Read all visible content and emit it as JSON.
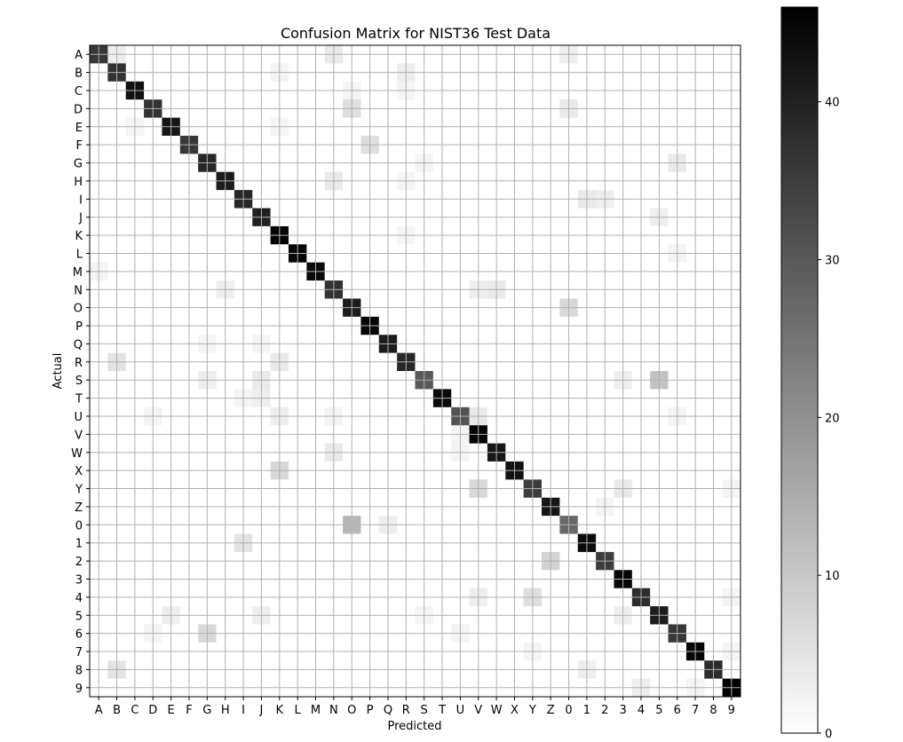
{
  "chart_data": {
    "type": "heatmap",
    "title": "Confusion Matrix for NIST36 Test Data",
    "xlabel": "Predicted",
    "ylabel": "Actual",
    "labels": [
      "A",
      "B",
      "C",
      "D",
      "E",
      "F",
      "G",
      "H",
      "I",
      "J",
      "K",
      "L",
      "M",
      "N",
      "O",
      "P",
      "Q",
      "R",
      "S",
      "T",
      "U",
      "V",
      "W",
      "X",
      "Y",
      "Z",
      "0",
      "1",
      "2",
      "3",
      "4",
      "5",
      "6",
      "7",
      "8",
      "9"
    ],
    "colormap": "gray_r",
    "vmin": 0,
    "vmax": 46,
    "colorbar_ticks": [
      0,
      10,
      20,
      30,
      40
    ],
    "grid": true,
    "diagonal": [
      36,
      37,
      43,
      37,
      42,
      36,
      39,
      41,
      39,
      40,
      45,
      45,
      44,
      37,
      41,
      45,
      41,
      39,
      30,
      44,
      31,
      45,
      42,
      43,
      35,
      42,
      27,
      44,
      35,
      45,
      38,
      41,
      36,
      45,
      38,
      46
    ],
    "off_diagonal": [
      {
        "actual": "A",
        "predicted": "B",
        "value": 3
      },
      {
        "actual": "A",
        "predicted": "N",
        "value": 4
      },
      {
        "actual": "A",
        "predicted": "0",
        "value": 3
      },
      {
        "actual": "B",
        "predicted": "K",
        "value": 2
      },
      {
        "actual": "B",
        "predicted": "R",
        "value": 3
      },
      {
        "actual": "C",
        "predicted": "O",
        "value": 2
      },
      {
        "actual": "C",
        "predicted": "R",
        "value": 2
      },
      {
        "actual": "D",
        "predicted": "O",
        "value": 6
      },
      {
        "actual": "D",
        "predicted": "0",
        "value": 4
      },
      {
        "actual": "E",
        "predicted": "C",
        "value": 2
      },
      {
        "actual": "E",
        "predicted": "K",
        "value": 2
      },
      {
        "actual": "F",
        "predicted": "P",
        "value": 6
      },
      {
        "actual": "G",
        "predicted": "S",
        "value": 2
      },
      {
        "actual": "G",
        "predicted": "6",
        "value": 4
      },
      {
        "actual": "H",
        "predicted": "N",
        "value": 4
      },
      {
        "actual": "H",
        "predicted": "R",
        "value": 2
      },
      {
        "actual": "I",
        "predicted": "1",
        "value": 4
      },
      {
        "actual": "I",
        "predicted": "2",
        "value": 3
      },
      {
        "actual": "J",
        "predicted": "5",
        "value": 3
      },
      {
        "actual": "K",
        "predicted": "R",
        "value": 2
      },
      {
        "actual": "L",
        "predicted": "6",
        "value": 2
      },
      {
        "actual": "M",
        "predicted": "A",
        "value": 2
      },
      {
        "actual": "N",
        "predicted": "H",
        "value": 3
      },
      {
        "actual": "N",
        "predicted": "V",
        "value": 3
      },
      {
        "actual": "N",
        "predicted": "W",
        "value": 4
      },
      {
        "actual": "O",
        "predicted": "0",
        "value": 7
      },
      {
        "actual": "Q",
        "predicted": "G",
        "value": 2
      },
      {
        "actual": "Q",
        "predicted": "J",
        "value": 2
      },
      {
        "actual": "R",
        "predicted": "B",
        "value": 5
      },
      {
        "actual": "R",
        "predicted": "K",
        "value": 4
      },
      {
        "actual": "S",
        "predicted": "G",
        "value": 3
      },
      {
        "actual": "S",
        "predicted": "J",
        "value": 4
      },
      {
        "actual": "S",
        "predicted": "3",
        "value": 3
      },
      {
        "actual": "S",
        "predicted": "5",
        "value": 11
      },
      {
        "actual": "T",
        "predicted": "I",
        "value": 2
      },
      {
        "actual": "T",
        "predicted": "J",
        "value": 3
      },
      {
        "actual": "U",
        "predicted": "D",
        "value": 2
      },
      {
        "actual": "U",
        "predicted": "K",
        "value": 3
      },
      {
        "actual": "U",
        "predicted": "N",
        "value": 2
      },
      {
        "actual": "U",
        "predicted": "V",
        "value": 4
      },
      {
        "actual": "U",
        "predicted": "6",
        "value": 2
      },
      {
        "actual": "V",
        "predicted": "U",
        "value": 2
      },
      {
        "actual": "W",
        "predicted": "N",
        "value": 4
      },
      {
        "actual": "W",
        "predicted": "U",
        "value": 2
      },
      {
        "actual": "X",
        "predicted": "K",
        "value": 7
      },
      {
        "actual": "Y",
        "predicted": "V",
        "value": 7
      },
      {
        "actual": "Y",
        "predicted": "3",
        "value": 4
      },
      {
        "actual": "Y",
        "predicted": "9",
        "value": 2
      },
      {
        "actual": "Z",
        "predicted": "2",
        "value": 2
      },
      {
        "actual": "0",
        "predicted": "O",
        "value": 13
      },
      {
        "actual": "0",
        "predicted": "Q",
        "value": 3
      },
      {
        "actual": "1",
        "predicted": "I",
        "value": 5
      },
      {
        "actual": "2",
        "predicted": "Z",
        "value": 8
      },
      {
        "actual": "4",
        "predicted": "V",
        "value": 3
      },
      {
        "actual": "4",
        "predicted": "Y",
        "value": 6
      },
      {
        "actual": "4",
        "predicted": "9",
        "value": 2
      },
      {
        "actual": "5",
        "predicted": "E",
        "value": 3
      },
      {
        "actual": "5",
        "predicted": "J",
        "value": 3
      },
      {
        "actual": "5",
        "predicted": "S",
        "value": 2
      },
      {
        "actual": "5",
        "predicted": "3",
        "value": 3
      },
      {
        "actual": "6",
        "predicted": "D",
        "value": 2
      },
      {
        "actual": "6",
        "predicted": "G",
        "value": 7
      },
      {
        "actual": "6",
        "predicted": "U",
        "value": 2
      },
      {
        "actual": "7",
        "predicted": "Y",
        "value": 2
      },
      {
        "actual": "7",
        "predicted": "9",
        "value": 2
      },
      {
        "actual": "8",
        "predicted": "B",
        "value": 5
      },
      {
        "actual": "8",
        "predicted": "1",
        "value": 3
      },
      {
        "actual": "9",
        "predicted": "4",
        "value": 3
      },
      {
        "actual": "9",
        "predicted": "7",
        "value": 2
      }
    ]
  }
}
